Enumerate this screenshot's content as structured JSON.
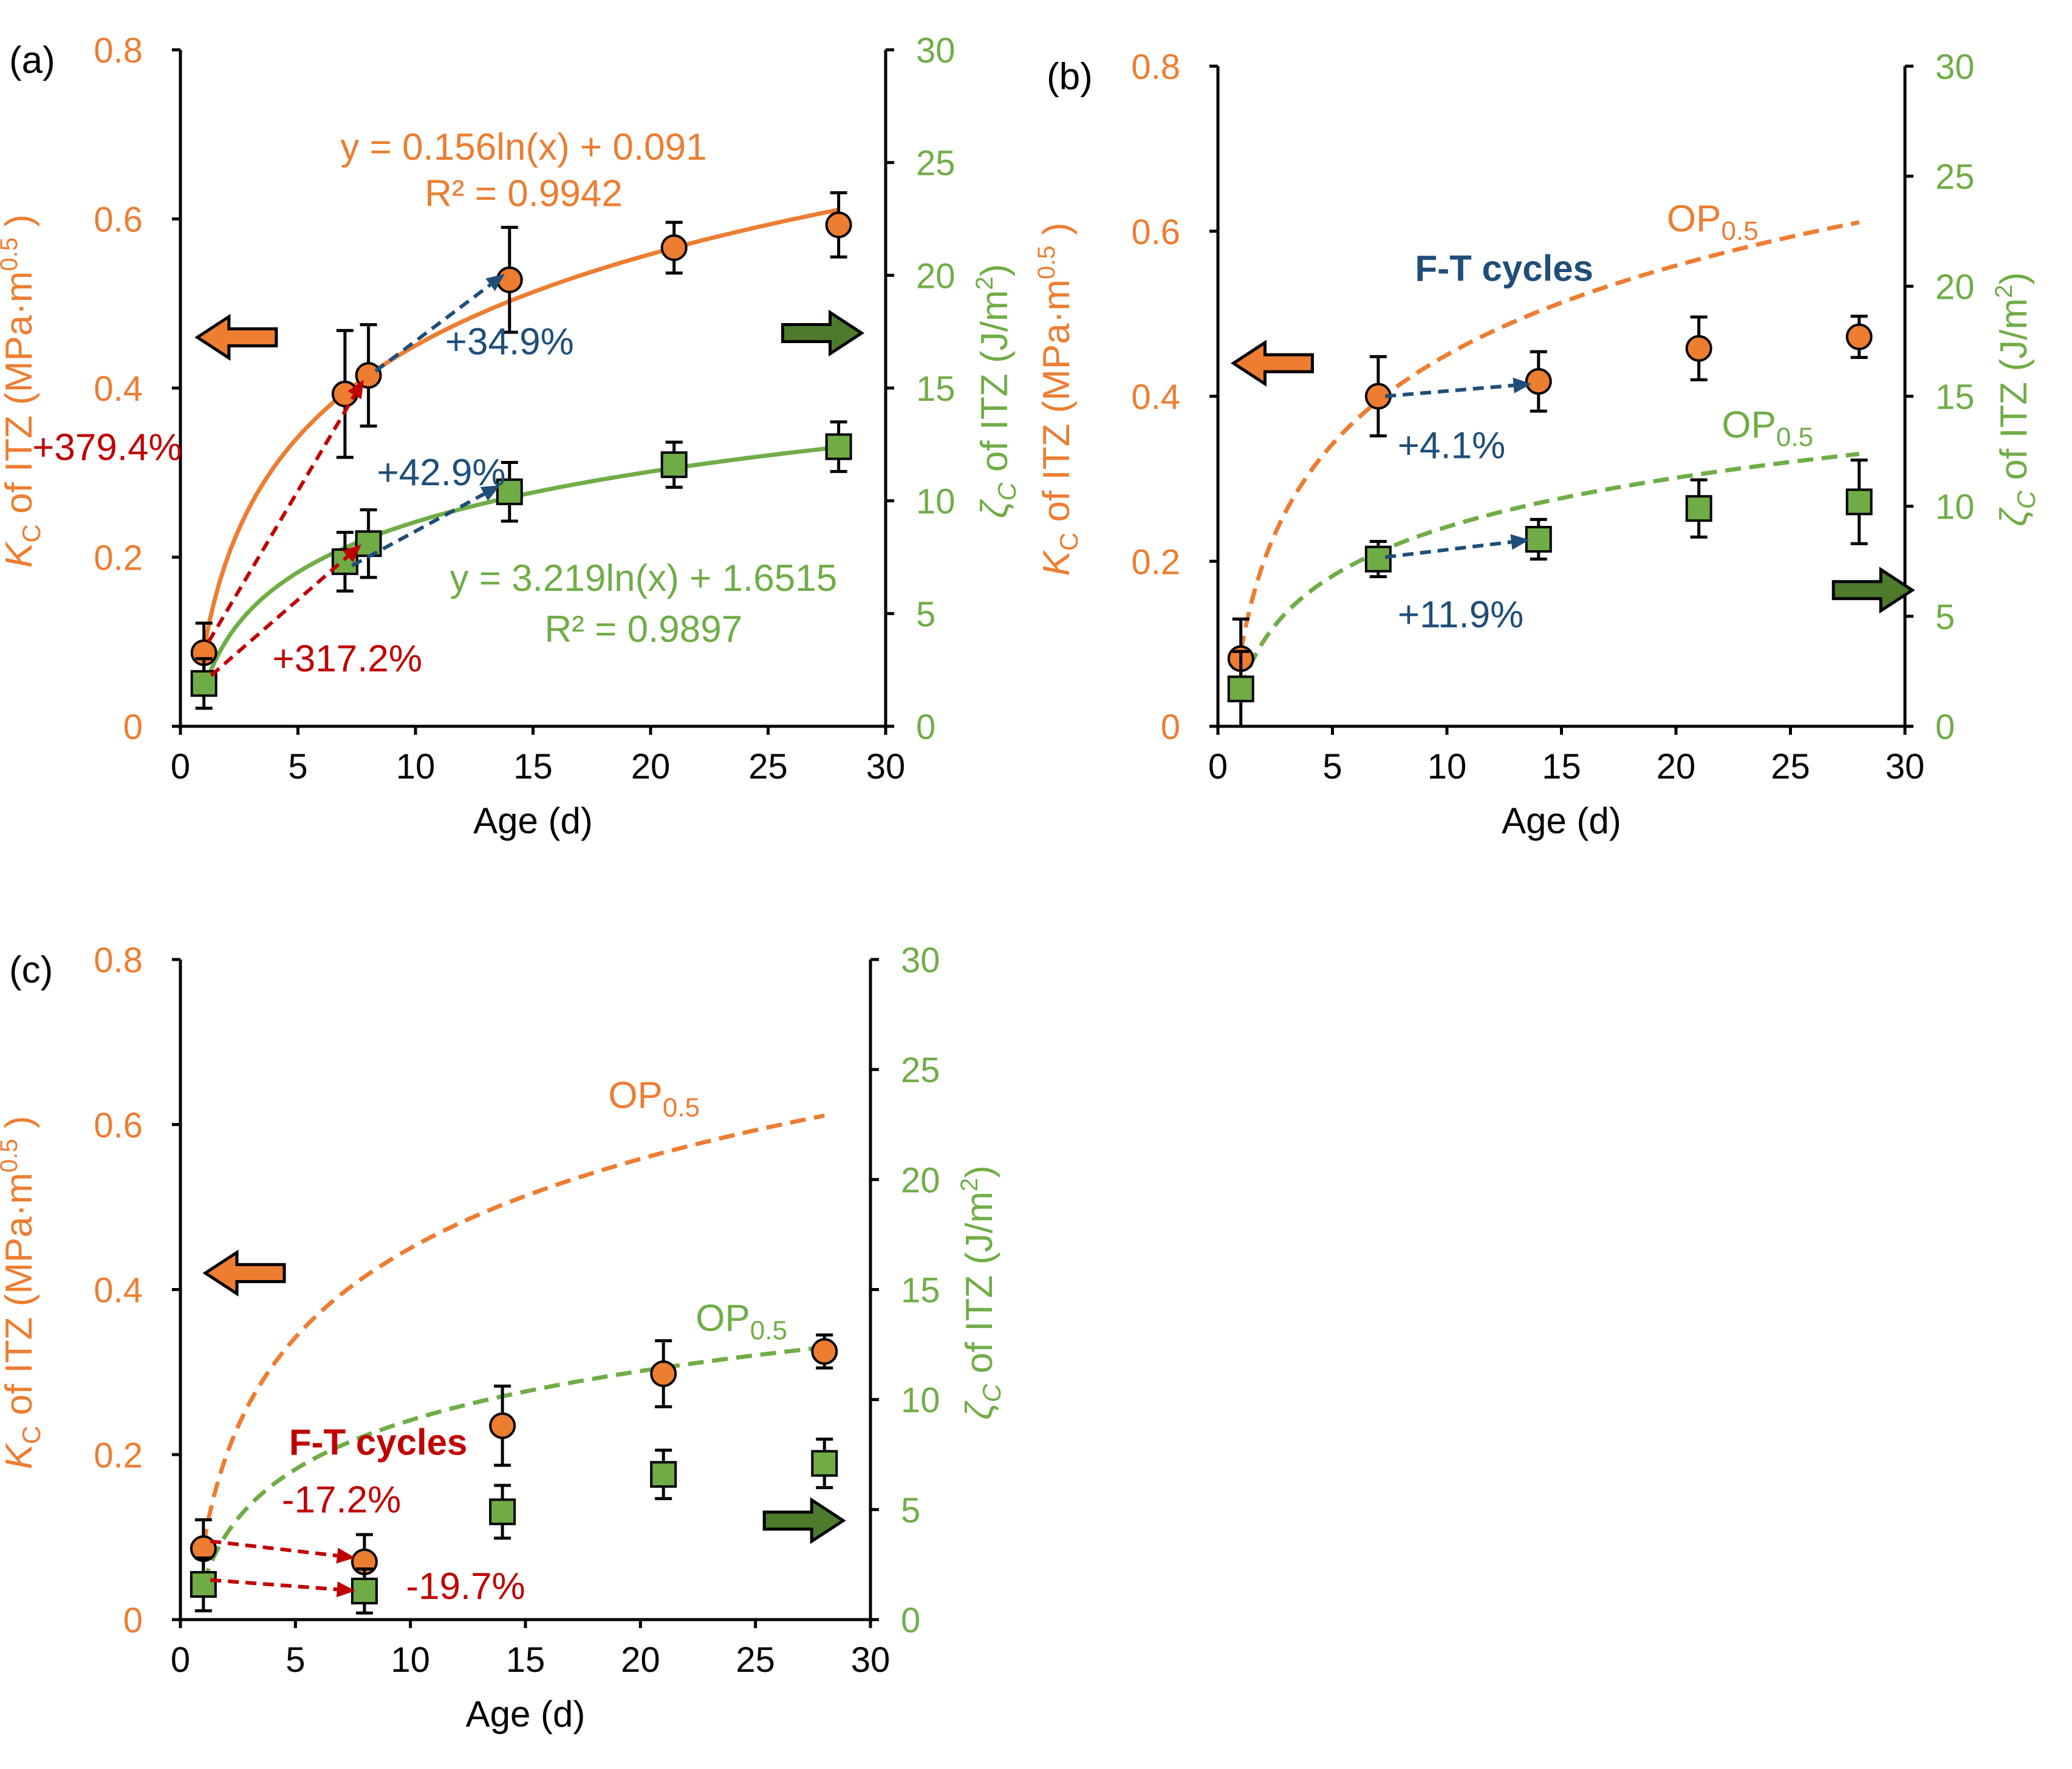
{
  "colors": {
    "orange": "#ED7D31",
    "green": "#70AD47",
    "green_marker": "#6FAC46",
    "dark_green": "#4E7A2C",
    "blue": "#1F4E79",
    "red": "#C00000",
    "black": "#000000"
  },
  "chart_data": [
    {
      "type": "scatter",
      "panel_label": "(a)",
      "xlabel": "Age (d)",
      "ylabel_left": {
        "sym": "K",
        "sub": "C",
        "text": " of ITZ (MPa·m",
        "sup": "0.5",
        "end": " )"
      },
      "ylabel_right": {
        "sym": "ζ",
        "sub": "C",
        "text": " of ITZ (J/m",
        "sup": "2",
        "end": ")"
      },
      "xlim": [
        0,
        30
      ],
      "xticks": [
        0,
        5,
        10,
        15,
        20,
        25,
        30
      ],
      "ylim_left": [
        0,
        0.8
      ],
      "yticks_left": [
        "0",
        "0.2",
        "0.4",
        "0.6",
        "0.8"
      ],
      "ylim_right": [
        0,
        30
      ],
      "yticks_right": [
        "0",
        "5",
        "10",
        "15",
        "20",
        "25",
        "30"
      ],
      "series": [
        {
          "name": "KC",
          "axis": "left",
          "marker": "circle",
          "x": [
            1,
            7,
            8,
            14,
            21,
            28
          ],
          "y": [
            0.087,
            0.393,
            0.415,
            0.528,
            0.566,
            0.593
          ],
          "err": [
            0.035,
            0.075,
            0.06,
            0.062,
            0.03,
            0.038
          ]
        },
        {
          "name": "ζC",
          "axis": "right",
          "marker": "square",
          "x": [
            1,
            7,
            8,
            14,
            21,
            28
          ],
          "y": [
            1.9,
            7.3,
            8.1,
            10.4,
            11.6,
            12.4
          ],
          "err": [
            1.1,
            1.3,
            1.5,
            1.3,
            1.0,
            1.1
          ]
        }
      ],
      "curves": [
        {
          "axis": "left",
          "color": "orange",
          "dash": false,
          "a": 0.156,
          "b": 0.091,
          "xmin": 1,
          "xmax": 28
        },
        {
          "axis": "right",
          "color": "green",
          "dash": false,
          "a": 3.219,
          "b": 1.6515,
          "xmin": 1,
          "xmax": 28
        }
      ],
      "annotations": [
        {
          "text": "y = 0.156ln(x) + 0.091",
          "color": "orange",
          "x": 14.6,
          "y": 0.67,
          "axis": "left",
          "anchor": "middle"
        },
        {
          "text": "R² = 0.9942",
          "color": "orange",
          "x": 14.6,
          "y": 0.615,
          "axis": "left",
          "anchor": "middle"
        },
        {
          "text": "+34.9%",
          "color": "blue",
          "x": 14.0,
          "y": 0.44,
          "axis": "left",
          "anchor": "middle"
        },
        {
          "text": "+379.4%",
          "color": "red",
          "x": -6.3,
          "y": 0.315,
          "axis": "left",
          "anchor": "start"
        },
        {
          "text": "+42.9%",
          "color": "blue",
          "x": 11.1,
          "y": 0.285,
          "axis": "left",
          "anchor": "middle"
        },
        {
          "text": "y = 3.219ln(x) + 1.6515",
          "color": "green",
          "x": 19.7,
          "y": 0.16,
          "axis": "left",
          "anchor": "middle"
        },
        {
          "text": "R² = 0.9897",
          "color": "green",
          "x": 19.7,
          "y": 0.1,
          "axis": "left",
          "anchor": "middle"
        },
        {
          "text": "+317.2%",
          "color": "red",
          "x": 7.1,
          "y": 0.065,
          "axis": "left",
          "anchor": "middle"
        }
      ],
      "arrows": [
        {
          "color": "red",
          "from": [
            1.2,
            0.1
          ],
          "to": [
            7.8,
            0.41
          ]
        },
        {
          "color": "red",
          "from": [
            1.3,
            0.06
          ],
          "to": [
            7.7,
            0.215
          ]
        },
        {
          "color": "blue",
          "from": [
            8.3,
            0.42
          ],
          "to": [
            13.8,
            0.535
          ]
        },
        {
          "color": "blue",
          "from": [
            7.3,
            0.19
          ],
          "to": [
            13.6,
            0.285
          ]
        }
      ],
      "fat_arrows": [
        {
          "dir": "left",
          "color": "orange",
          "cx": 2.4,
          "cy": 0.46
        },
        {
          "dir": "right",
          "color": "dark_green",
          "cx": 27.3,
          "cy": 0.465
        }
      ]
    },
    {
      "type": "scatter",
      "panel_label": "(b)",
      "xlabel": "Age (d)",
      "ylabel_left": {
        "sym": "K",
        "sub": "C",
        "text": " of ITZ (MPa·m",
        "sup": "0.5",
        "end": " )"
      },
      "ylabel_right": {
        "sym": "ζ",
        "sub": "C",
        "text": " of ITZ (J/m",
        "sup": "2",
        "end": ")"
      },
      "xlim": [
        0,
        30
      ],
      "xticks": [
        0,
        5,
        10,
        15,
        20,
        25,
        30
      ],
      "ylim_left": [
        0,
        0.8
      ],
      "yticks_left": [
        "0",
        "0.2",
        "0.4",
        "0.6",
        "0.8"
      ],
      "ylim_right": [
        0,
        30
      ],
      "yticks_right": [
        "0",
        "5",
        "10",
        "15",
        "20",
        "25",
        "30"
      ],
      "series": [
        {
          "name": "KC",
          "axis": "left",
          "marker": "circle",
          "x": [
            1,
            7,
            14,
            21,
            28
          ],
          "y": [
            0.082,
            0.4,
            0.418,
            0.458,
            0.472
          ],
          "err": [
            0.048,
            0.048,
            0.036,
            0.038,
            0.025
          ]
        },
        {
          "name": "ζC",
          "axis": "right",
          "marker": "square",
          "x": [
            1,
            7,
            14,
            21,
            28
          ],
          "y": [
            1.7,
            7.6,
            8.5,
            9.9,
            10.2
          ],
          "err": [
            1.7,
            0.8,
            0.9,
            1.3,
            1.9
          ]
        }
      ],
      "curves": [
        {
          "axis": "left",
          "color": "orange",
          "dash": true,
          "a": 0.156,
          "b": 0.091,
          "xmin": 1,
          "xmax": 28
        },
        {
          "axis": "right",
          "color": "green",
          "dash": true,
          "a": 3.219,
          "b": 1.6515,
          "xmin": 1,
          "xmax": 28
        }
      ],
      "op_labels": [
        {
          "text": "OP",
          "sub": "0.5",
          "color": "orange",
          "x": 19.6,
          "y": 0.6,
          "axis": "left"
        },
        {
          "text": "OP",
          "sub": "0.5",
          "color": "green",
          "x": 22.0,
          "y": 0.35,
          "axis": "left"
        }
      ],
      "annotations": [
        {
          "text": "F-T cycles",
          "color": "blue",
          "x": 12.5,
          "y": 0.54,
          "axis": "left",
          "anchor": "middle",
          "bold": true
        },
        {
          "text": "+4.1%",
          "color": "blue",
          "x": 10.2,
          "y": 0.325,
          "axis": "left",
          "anchor": "middle"
        },
        {
          "text": "+11.9%",
          "color": "blue",
          "x": 10.6,
          "y": 0.12,
          "axis": "left",
          "anchor": "middle"
        }
      ],
      "arrows": [
        {
          "color": "blue",
          "from": [
            7.3,
            0.4
          ],
          "to": [
            13.7,
            0.415
          ]
        },
        {
          "color": "blue",
          "from": [
            7.3,
            0.205
          ],
          "to": [
            13.6,
            0.226
          ]
        }
      ],
      "fat_arrows": [
        {
          "dir": "left",
          "color": "orange",
          "cx": 2.4,
          "cy": 0.44
        },
        {
          "dir": "right",
          "color": "dark_green",
          "cx": 28.6,
          "cy": 0.165
        }
      ]
    },
    {
      "type": "scatter",
      "panel_label": "(c)",
      "xlabel": "Age (d)",
      "ylabel_left": {
        "sym": "K",
        "sub": "C",
        "text": " of ITZ (MPa·m",
        "sup": "0.5",
        "end": " )"
      },
      "ylabel_right": {
        "sym": "ζ",
        "sub": "C",
        "text": " of ITZ (J/m",
        "sup": "2",
        "end": ")"
      },
      "xlim": [
        0,
        30
      ],
      "xticks": [
        0,
        5,
        10,
        15,
        20,
        25,
        30
      ],
      "ylim_left": [
        0,
        0.8
      ],
      "yticks_left": [
        "0",
        "0.2",
        "0.4",
        "0.6",
        "0.8"
      ],
      "ylim_right": [
        0,
        30
      ],
      "yticks_right": [
        "0",
        "5",
        "10",
        "15",
        "20",
        "25",
        "30"
      ],
      "series": [
        {
          "name": "KC",
          "axis": "left",
          "marker": "circle",
          "x": [
            1,
            8,
            14,
            21,
            28
          ],
          "y": [
            0.086,
            0.07,
            0.235,
            0.298,
            0.325
          ],
          "err": [
            0.035,
            0.033,
            0.048,
            0.04,
            0.02
          ]
        },
        {
          "name": "ζC",
          "axis": "right",
          "marker": "square",
          "x": [
            1,
            8,
            14,
            21,
            28
          ],
          "y": [
            1.6,
            1.3,
            4.9,
            6.6,
            7.1
          ],
          "err": [
            1.2,
            1.0,
            1.2,
            1.1,
            1.1
          ]
        }
      ],
      "curves": [
        {
          "axis": "left",
          "color": "orange",
          "dash": true,
          "a": 0.156,
          "b": 0.091,
          "xmin": 1,
          "xmax": 28
        },
        {
          "axis": "right",
          "color": "green",
          "dash": true,
          "a": 3.219,
          "b": 1.6515,
          "xmin": 1,
          "xmax": 28
        }
      ],
      "op_labels": [
        {
          "text": "OP",
          "sub": "0.5",
          "color": "orange",
          "x": 18.6,
          "y": 0.62,
          "axis": "left"
        },
        {
          "text": "OP",
          "sub": "0.5",
          "color": "green",
          "x": 22.4,
          "y": 0.35,
          "axis": "left"
        }
      ],
      "annotations": [
        {
          "text": "F-T cycles",
          "color": "red",
          "x": 8.6,
          "y": 0.2,
          "axis": "left",
          "anchor": "middle",
          "bold": true
        },
        {
          "text": "-17.2%",
          "color": "red",
          "x": 7.0,
          "y": 0.13,
          "axis": "left",
          "anchor": "middle"
        },
        {
          "text": "-19.7%",
          "color": "red",
          "x": 12.4,
          "y": 0.025,
          "axis": "left",
          "anchor": "middle"
        }
      ],
      "arrows": [
        {
          "color": "red",
          "from": [
            1.3,
            0.095
          ],
          "to": [
            7.6,
            0.075
          ]
        },
        {
          "color": "red",
          "from": [
            1.3,
            0.048
          ],
          "to": [
            7.6,
            0.035
          ]
        }
      ],
      "fat_arrows": [
        {
          "dir": "left",
          "color": "orange",
          "cx": 2.8,
          "cy": 0.42
        },
        {
          "dir": "right",
          "color": "dark_green",
          "cx": 27.1,
          "cy": 0.12
        }
      ]
    }
  ]
}
